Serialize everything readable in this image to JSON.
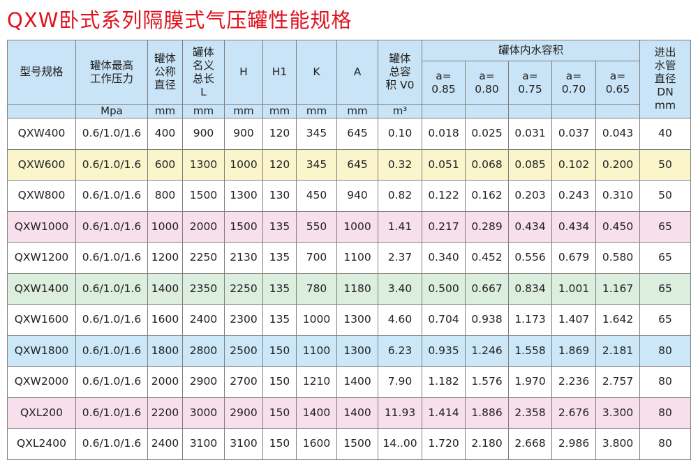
{
  "title": "QXW卧式系列隔膜式气压罐性能规格",
  "header": {
    "model": "型号规格",
    "pressure": [
      "罐体最高",
      "工作压力"
    ],
    "diameter": [
      "罐体",
      "公称",
      "直径"
    ],
    "length": [
      "罐体",
      "名义",
      "总长",
      "L"
    ],
    "h": "H",
    "h1": "H1",
    "k": "K",
    "a": "A",
    "volume": [
      "罐体",
      "总容",
      "积 V0"
    ],
    "water_group": "罐体内水容积",
    "a_values": [
      [
        "a=",
        "0.85"
      ],
      [
        "a=",
        "0.80"
      ],
      [
        "a=",
        "0.75"
      ],
      [
        "a=",
        "0.70"
      ],
      [
        "a=",
        "0.65"
      ]
    ],
    "dn": [
      "进出",
      "水管",
      "直径",
      "DN"
    ]
  },
  "units": [
    "Mpa",
    "mm",
    "mm",
    "mm",
    "mm",
    "mm",
    "mm",
    "m³"
  ],
  "unit_last": "mm",
  "colors": {
    "header": "#c9e4f6",
    "white": "#ffffff",
    "yellow": "#fbf5cc",
    "pink": "#f8dfec",
    "green": "#dceedd",
    "blue": "#cce8f8",
    "title": "#e0121f"
  },
  "rows": [
    {
      "bg": "white",
      "cells": [
        "QXW400",
        "0.6/1.0/1.6",
        "400",
        "900",
        "900",
        "120",
        "345",
        "645",
        "0.10",
        "0.018",
        "0.025",
        "0.031",
        "0.037",
        "0.043",
        "40"
      ]
    },
    {
      "bg": "yellow",
      "cells": [
        "QXW600",
        "0.6/1.0/1.6",
        "600",
        "1300",
        "1000",
        "120",
        "345",
        "645",
        "0.32",
        "0.051",
        "0.068",
        "0.085",
        "0.102",
        "0.200",
        "50"
      ]
    },
    {
      "bg": "white",
      "cells": [
        "QXW800",
        "0.6/1.0/1.6",
        "800",
        "1500",
        "1300",
        "130",
        "450",
        "940",
        "0.82",
        "0.122",
        "0.162",
        "0.203",
        "0.243",
        "0.310",
        "50"
      ]
    },
    {
      "bg": "pink",
      "cells": [
        "QXW1000",
        "0.6/1.0/1.6",
        "1000",
        "2000",
        "1500",
        "135",
        "550",
        "1000",
        "1.41",
        "0.217",
        "0.289",
        "0.434",
        "0.434",
        "0.450",
        "65"
      ]
    },
    {
      "bg": "white",
      "cells": [
        "QXW1200",
        "0.6/1.0/1.6",
        "1200",
        "2250",
        "2130",
        "135",
        "700",
        "1100",
        "2.37",
        "0.340",
        "0.452",
        "0.556",
        "0.679",
        "0.580",
        "65"
      ]
    },
    {
      "bg": "green",
      "cells": [
        "QXW1400",
        "0.6/1.0/1.6",
        "1400",
        "2350",
        "2250",
        "135",
        "780",
        "1180",
        "3.40",
        "0.500",
        "0.667",
        "0.834",
        "1.001",
        "1.167",
        "65"
      ]
    },
    {
      "bg": "white",
      "cells": [
        "QXW1600",
        "0.6/1.0/1.6",
        "1600",
        "2400",
        "2300",
        "135",
        "1000",
        "1300",
        "4.60",
        "0.704",
        "0.938",
        "1.173",
        "1.407",
        "1.642",
        "65"
      ]
    },
    {
      "bg": "blue",
      "cells": [
        "QXW1800",
        "0.6/1.0/1.6",
        "1800",
        "2800",
        "2500",
        "150",
        "1100",
        "1300",
        "6.23",
        "0.935",
        "1.246",
        "1.558",
        "1.869",
        "2.181",
        "80"
      ]
    },
    {
      "bg": "white",
      "cells": [
        "QXW2000",
        "0.6/1.0/1.6",
        "2000",
        "2900",
        "2700",
        "150",
        "1210",
        "1400",
        "7.90",
        "1.182",
        "1.576",
        "1.970",
        "2.236",
        "2.757",
        "80"
      ]
    },
    {
      "bg": "pink",
      "cells": [
        "QXL200",
        "0.6/1.0/1.6",
        "2200",
        "3000",
        "2900",
        "150",
        "1400",
        "1400",
        "11.93",
        "1.414",
        "1.886",
        "2.358",
        "2.676",
        "3.300",
        "80"
      ]
    },
    {
      "bg": "white",
      "cells": [
        "QXL2400",
        "0.6/1.0/1.6",
        "2400",
        "3100",
        "3100",
        "150",
        "1600",
        "1500",
        "14..00",
        "1.720",
        "2.180",
        "2.668",
        "2.986",
        "3.800",
        "80"
      ]
    }
  ]
}
